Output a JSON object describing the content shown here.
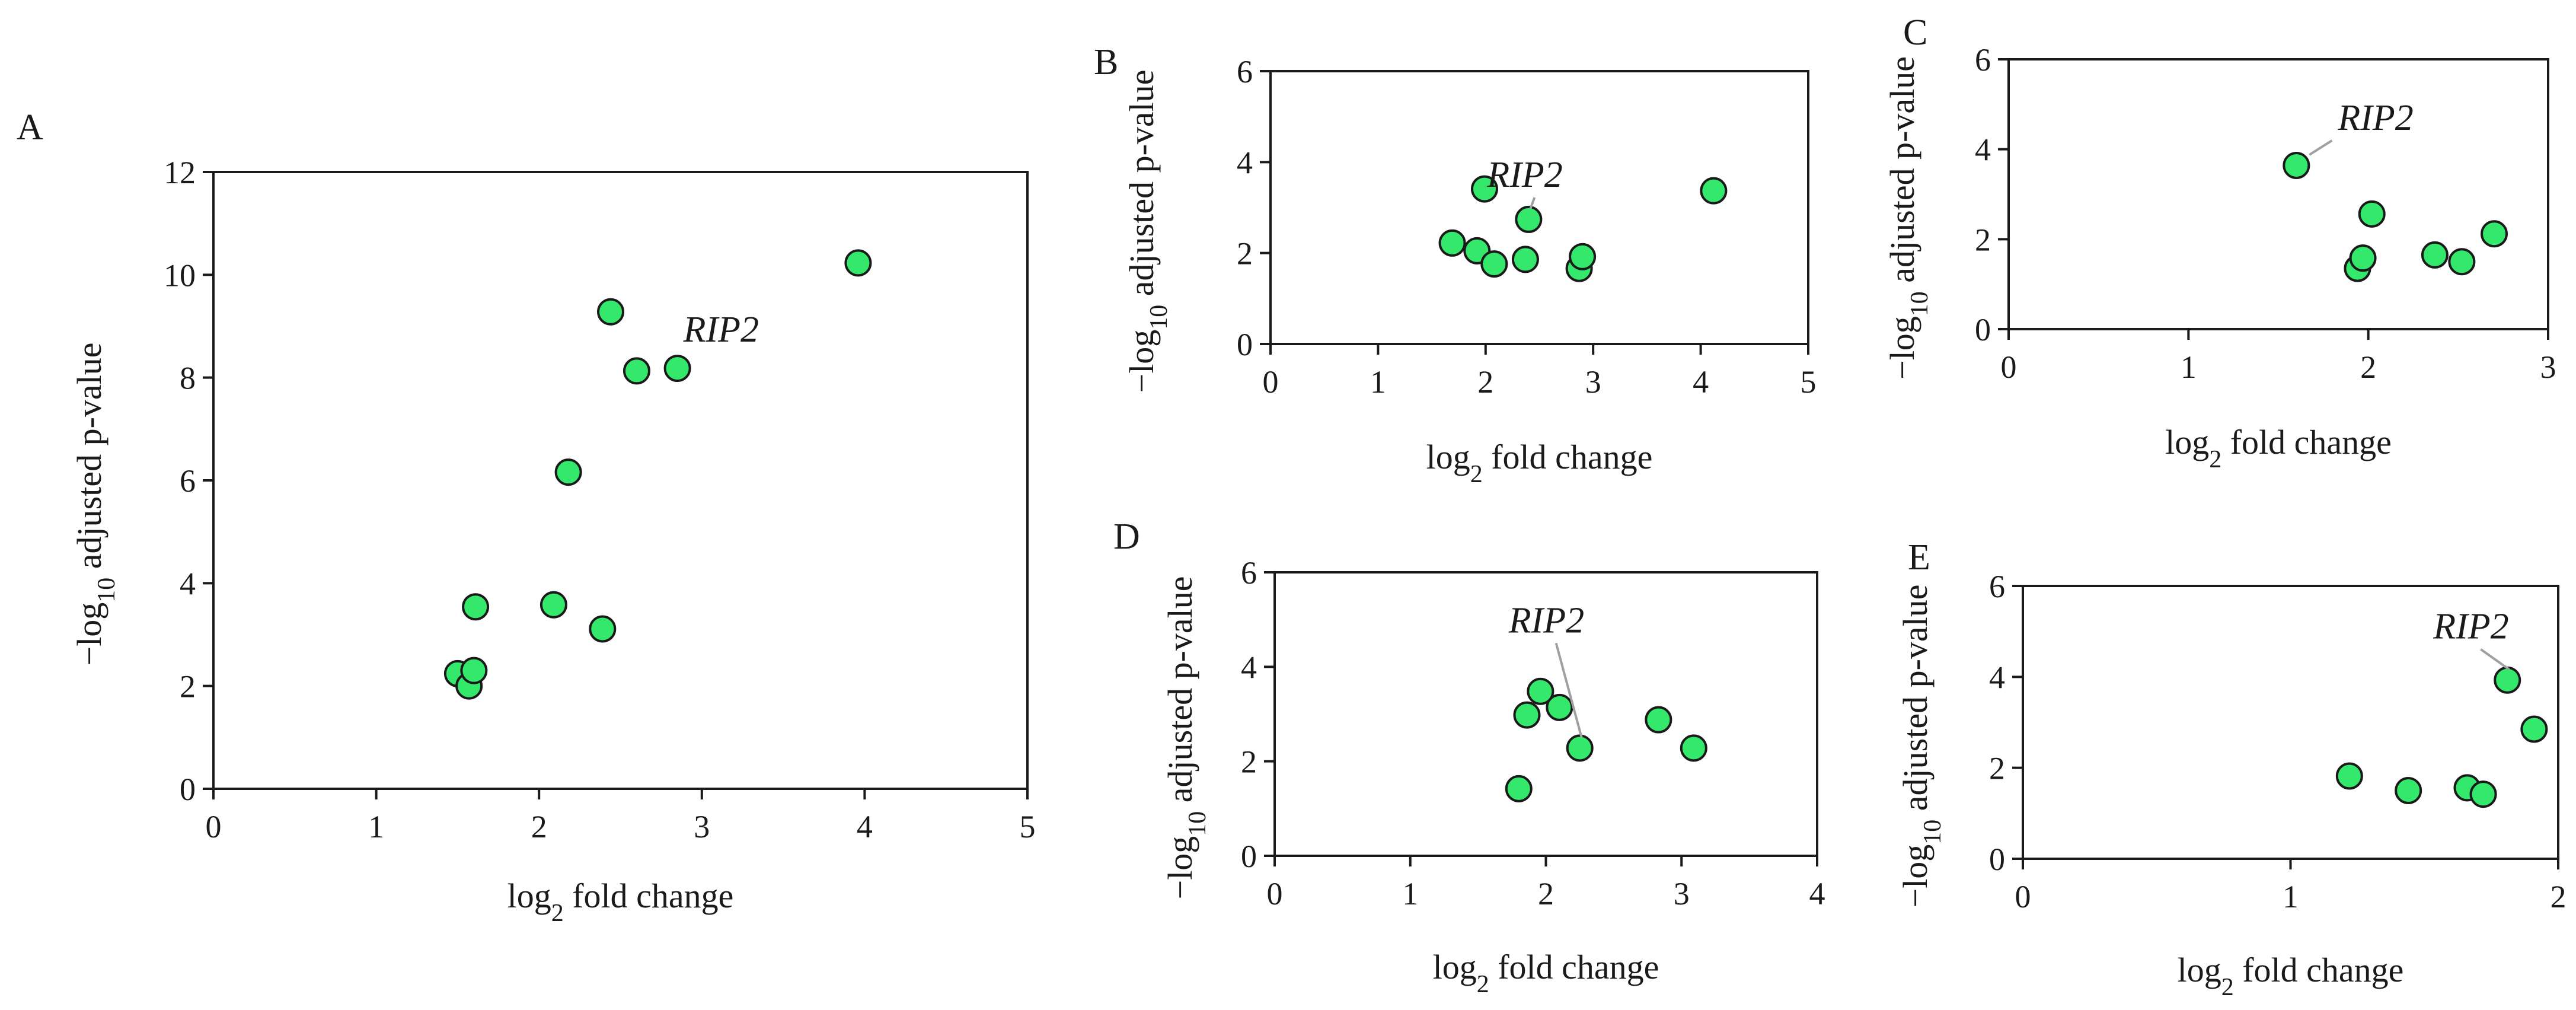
{
  "marker_color": "#33e86b",
  "chart_data": [
    {
      "type": "scatter",
      "panel": "A",
      "title": "",
      "xlabel": "log2 fold change",
      "ylabel": "−log10 adjusted p-value",
      "xlim": [
        0,
        5
      ],
      "ylim": [
        0,
        12
      ],
      "xticks": [
        0,
        1,
        2,
        3,
        4,
        5
      ],
      "yticks": [
        0,
        2,
        4,
        6,
        8,
        10,
        12
      ],
      "x": [
        1.5,
        1.57,
        1.6,
        1.61,
        2.09,
        2.18,
        2.39,
        2.44,
        2.6,
        2.85,
        3.96
      ],
      "y": [
        2.24,
        2.0,
        2.3,
        3.54,
        3.58,
        6.16,
        3.11,
        9.28,
        8.13,
        8.18,
        10.23
      ],
      "annotation": {
        "text": "RIP2",
        "x": 2.85,
        "y": 8.18
      }
    },
    {
      "type": "scatter",
      "panel": "B",
      "title": "",
      "xlabel": "log2 fold change",
      "ylabel": "−log10 adjusted p-value",
      "xlim": [
        0,
        5
      ],
      "ylim": [
        0,
        6
      ],
      "xticks": [
        0,
        1,
        2,
        3,
        4,
        5
      ],
      "yticks": [
        0,
        2,
        4,
        6
      ],
      "x": [
        1.69,
        1.92,
        1.99,
        2.08,
        2.37,
        2.4,
        2.87,
        2.9,
        4.12
      ],
      "y": [
        2.22,
        2.05,
        3.41,
        1.76,
        1.86,
        2.74,
        1.66,
        1.92,
        3.37
      ],
      "annotation": {
        "text": "RIP2",
        "x": 2.4,
        "y": 2.74
      }
    },
    {
      "type": "scatter",
      "panel": "C",
      "title": "",
      "xlabel": "log2 fold change",
      "ylabel": "−log10 adjusted p-value",
      "xlim": [
        0,
        3
      ],
      "ylim": [
        0,
        6
      ],
      "xticks": [
        0,
        1,
        2,
        3
      ],
      "yticks": [
        0,
        2,
        4,
        6
      ],
      "x": [
        1.6,
        1.94,
        1.97,
        2.02,
        2.37,
        2.52,
        2.7
      ],
      "y": [
        3.64,
        1.35,
        1.58,
        2.56,
        1.65,
        1.5,
        2.12
      ],
      "annotation": {
        "text": "RIP2",
        "x": 1.6,
        "y": 3.64
      }
    },
    {
      "type": "scatter",
      "panel": "D",
      "title": "",
      "xlabel": "log2 fold change",
      "ylabel": "−log10 adjusted p-value",
      "xlim": [
        0,
        4
      ],
      "ylim": [
        0,
        6
      ],
      "xticks": [
        0,
        1,
        2,
        3,
        4
      ],
      "yticks": [
        0,
        2,
        4,
        6
      ],
      "x": [
        1.8,
        1.86,
        1.96,
        2.1,
        2.25,
        2.83,
        3.09
      ],
      "y": [
        1.42,
        2.98,
        3.48,
        3.14,
        2.28,
        2.88,
        2.28
      ],
      "annotation": {
        "text": "RIP2",
        "x": 2.25,
        "y": 2.28
      }
    },
    {
      "type": "scatter",
      "panel": "E",
      "title": "",
      "xlabel": "log2 fold change",
      "ylabel": "−log10 adjusted p-value",
      "xlim": [
        0,
        2
      ],
      "ylim": [
        0,
        6
      ],
      "xticks": [
        0,
        1,
        2
      ],
      "yticks": [
        0,
        2,
        4,
        6
      ],
      "x": [
        1.22,
        1.44,
        1.66,
        1.72,
        1.81,
        1.91
      ],
      "y": [
        1.82,
        1.5,
        1.56,
        1.42,
        3.93,
        2.85
      ],
      "annotation": {
        "text": "RIP2",
        "x": 1.81,
        "y": 3.93
      }
    }
  ]
}
